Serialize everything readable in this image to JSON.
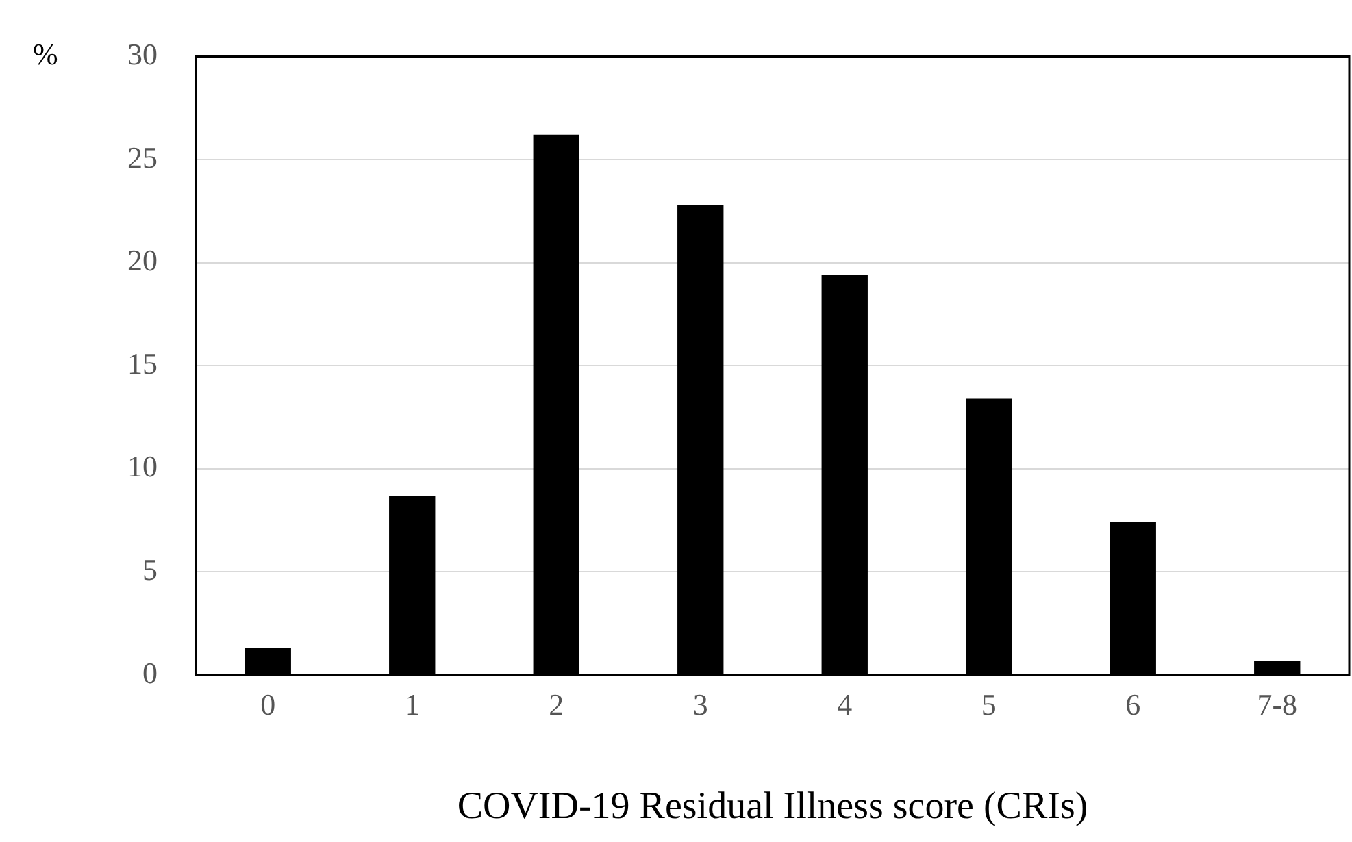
{
  "chart_data": {
    "type": "bar",
    "ylabel": "%",
    "xlabel": "COVID-19 Residual Illness score (CRIs)",
    "categories": [
      "0",
      "1",
      "2",
      "3",
      "4",
      "5",
      "6",
      "7-8"
    ],
    "values": [
      1.3,
      8.7,
      26.2,
      22.8,
      19.4,
      13.4,
      7.4,
      0.7
    ],
    "color": "#000000",
    "ylim": [
      0,
      30
    ],
    "yticks": [
      0,
      5,
      10,
      15,
      20,
      25,
      30
    ],
    "grid": "y"
  }
}
